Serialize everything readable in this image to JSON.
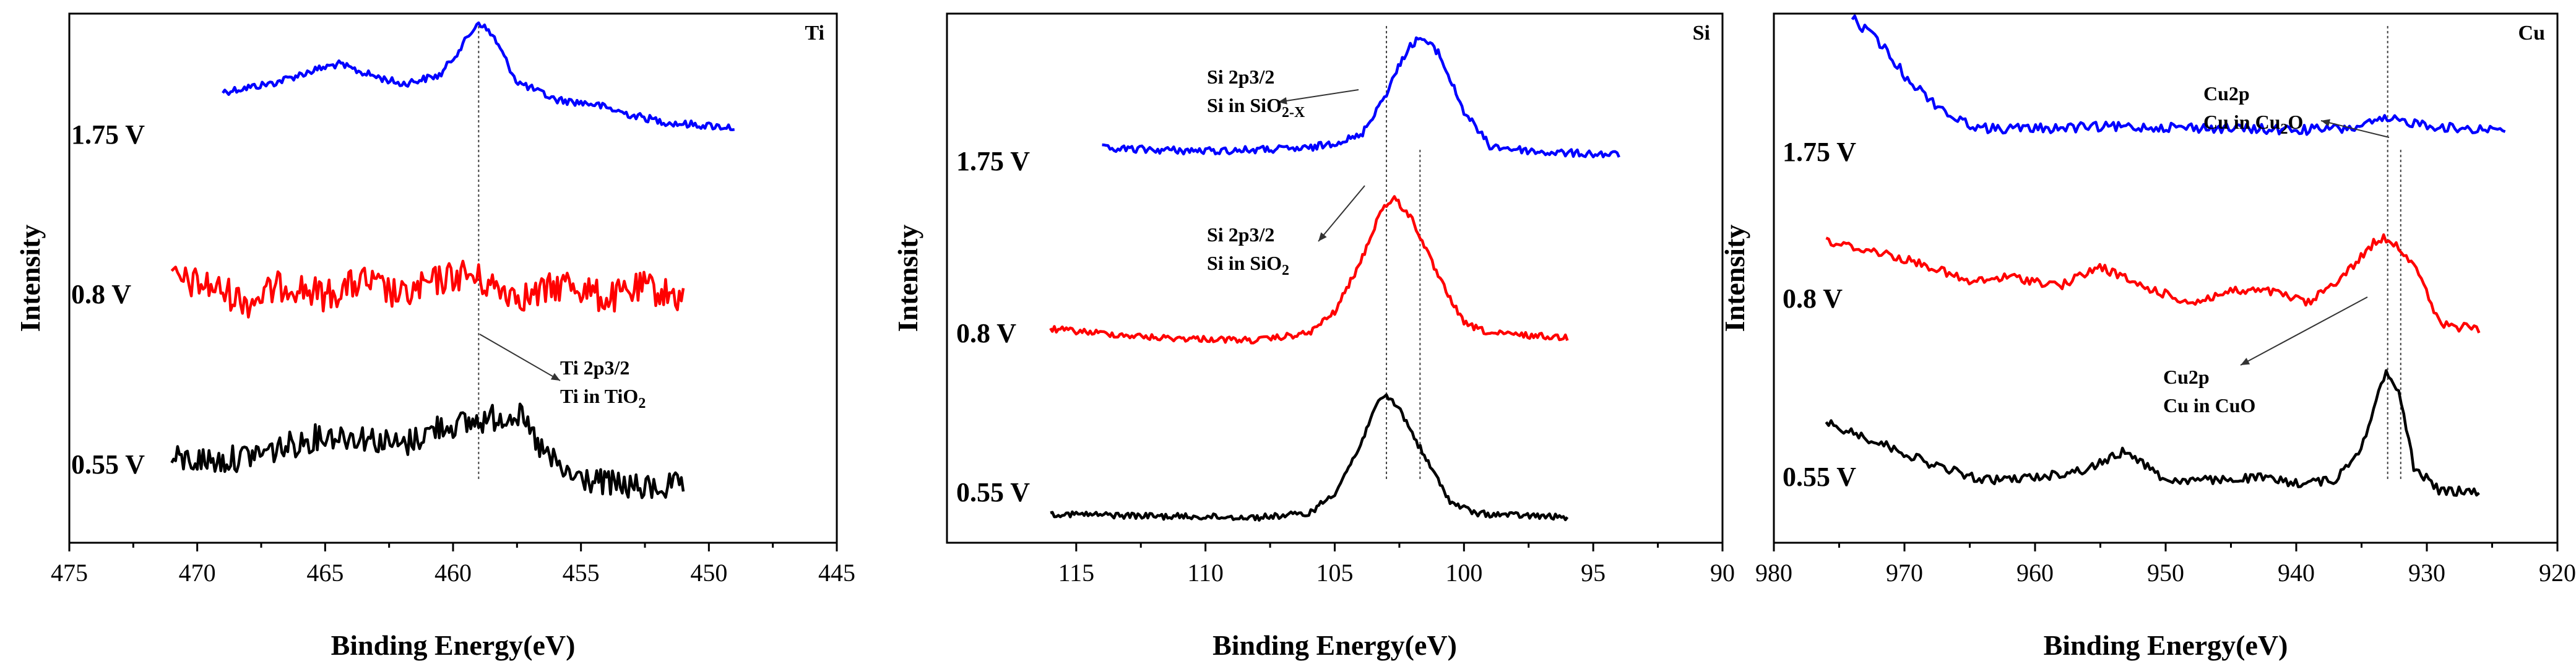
{
  "chart_data": [
    {
      "type": "line",
      "title": "Ti",
      "xlabel": "Binding Energy(eV)",
      "ylabel": "Intensity",
      "xlim": [
        475,
        445
      ],
      "xticks": [
        475,
        470,
        465,
        460,
        455,
        450,
        445
      ],
      "xtick_labels": [
        "475",
        "470",
        "465",
        "460",
        "455",
        "450",
        "445"
      ],
      "reference_line_x": 459.0,
      "annotations": [
        {
          "lines": [
            "Ti 2p3/2",
            "Ti in TiO",
            "2"
          ],
          "points_to_x": 459.0
        }
      ],
      "series": [
        {
          "name": "1.75 V",
          "label": "1.75 V",
          "color": "#0000ff",
          "x": [
            469,
            467,
            465.5,
            464.5,
            463.5,
            462,
            460.5,
            459.6,
            459.0,
            458.4,
            457.5,
            456,
            454.5,
            453,
            451.5,
            449
          ],
          "y": [
            0.37,
            0.45,
            0.56,
            0.62,
            0.54,
            0.44,
            0.52,
            0.8,
            1.0,
            0.86,
            0.46,
            0.3,
            0.26,
            0.16,
            0.09,
            0.05
          ]
        },
        {
          "name": "0.8 V",
          "label": "0.8 V",
          "color": "#ff0000",
          "x": [
            471,
            469.5,
            468,
            466.5,
            465,
            463.5,
            462,
            460.5,
            459.5,
            458.5,
            457,
            455.5,
            454,
            452.5,
            451
          ],
          "y": [
            0.18,
            0.08,
            -0.18,
            0.12,
            -0.08,
            0.16,
            -0.1,
            0.18,
            0.28,
            0.08,
            -0.1,
            0.14,
            -0.14,
            0.06,
            -0.12
          ]
        },
        {
          "name": "0.55 V",
          "label": "0.55 V",
          "color": "#000000",
          "x": [
            471,
            469,
            467,
            465,
            463.5,
            462,
            460.5,
            459.5,
            458.5,
            457.5,
            456.5,
            455.5,
            454,
            452.5,
            451
          ],
          "y": [
            0.12,
            0.1,
            0.22,
            0.38,
            0.36,
            0.26,
            0.48,
            0.5,
            0.56,
            0.62,
            0.2,
            -0.06,
            -0.14,
            -0.2,
            -0.16
          ]
        }
      ]
    },
    {
      "type": "line",
      "title": "Si",
      "xlabel": "Binding Energy(eV)",
      "ylabel": "Intensity",
      "xlim": [
        120,
        90
      ],
      "xticks": [
        115,
        110,
        105,
        100,
        95,
        90
      ],
      "xtick_labels": [
        "115",
        "110",
        "105",
        "100",
        "95",
        "90"
      ],
      "reference_lines_x": [
        103.0,
        101.7
      ],
      "annotations": [
        {
          "lines": [
            "Si 2p3/2",
            "Si in SiO",
            "2-X"
          ],
          "points_to_x": 101.7
        },
        {
          "lines": [
            "Si 2p3/2",
            "Si in SiO",
            "2"
          ],
          "points_to_x": 103.0
        }
      ],
      "series": [
        {
          "name": "1.75 V",
          "label": "1.75 V",
          "color": "#0000ff",
          "x": [
            114,
            110,
            106,
            104,
            103,
            102.2,
            101.7,
            101.0,
            100.0,
            99.0,
            97,
            94
          ],
          "y": [
            0.1,
            0.08,
            0.1,
            0.2,
            0.55,
            0.9,
            1.0,
            0.88,
            0.4,
            0.12,
            0.07,
            0.05
          ]
        },
        {
          "name": "0.8 V",
          "label": "0.8 V",
          "color": "#ff0000",
          "x": [
            116,
            112,
            108,
            106,
            105,
            104,
            103.2,
            102.7,
            102.0,
            101.0,
            100.0,
            99,
            96
          ],
          "y": [
            0.08,
            0.02,
            0.0,
            0.05,
            0.2,
            0.55,
            0.92,
            1.0,
            0.85,
            0.45,
            0.12,
            0.05,
            0.02
          ]
        },
        {
          "name": "0.55 V",
          "label": "0.55 V",
          "color": "#000000",
          "x": [
            116,
            112,
            108,
            106,
            105,
            104,
            103.5,
            103.0,
            102.5,
            101.5,
            100.5,
            99.5,
            96
          ],
          "y": [
            0.05,
            0.03,
            0.02,
            0.05,
            0.22,
            0.6,
            0.9,
            1.0,
            0.9,
            0.5,
            0.14,
            0.05,
            0.02
          ]
        }
      ]
    },
    {
      "type": "line",
      "title": "Cu",
      "xlabel": "Binding Energy(eV)",
      "ylabel": "Intensity",
      "xlim": [
        980,
        920
      ],
      "xticks": [
        980,
        970,
        960,
        950,
        940,
        930,
        920
      ],
      "xtick_labels": [
        "980",
        "970",
        "960",
        "950",
        "940",
        "930",
        "920"
      ],
      "reference_lines_x": [
        933.0,
        932.0
      ],
      "annotations": [
        {
          "lines": [
            "Cu2p",
            "Cu in Cu",
            "2",
            "O"
          ],
          "points_to_x": 932.0
        },
        {
          "lines": [
            "Cu2p",
            "Cu in CuO"
          ],
          "points_to_x": 933.0
        }
      ],
      "series": [
        {
          "name": "1.75 V",
          "label": "1.75 V",
          "color": "#0000ff",
          "x": [
            974,
            972,
            970,
            968,
            966,
            964,
            960,
            955,
            950,
            945,
            940,
            936,
            933,
            931,
            928,
            924
          ],
          "y": [
            1.0,
            0.85,
            0.62,
            0.45,
            0.32,
            0.26,
            0.26,
            0.27,
            0.27,
            0.26,
            0.25,
            0.26,
            0.32,
            0.3,
            0.26,
            0.26
          ]
        },
        {
          "name": "0.8 V",
          "label": "0.8 V",
          "color": "#ff0000",
          "x": [
            976,
            972,
            968,
            965,
            962,
            958,
            955,
            952,
            948,
            945,
            942,
            939,
            936,
            934,
            933,
            931,
            929,
            926
          ],
          "y": [
            0.72,
            0.65,
            0.55,
            0.44,
            0.48,
            0.42,
            0.55,
            0.42,
            0.3,
            0.38,
            0.38,
            0.3,
            0.52,
            0.72,
            0.75,
            0.58,
            0.15,
            0.12
          ]
        },
        {
          "name": "0.55 V",
          "label": "0.55 V",
          "color": "#000000",
          "x": [
            976,
            972,
            968,
            964,
            960,
            956,
            953,
            950,
            946,
            943,
            940,
            937,
            935,
            933.5,
            933,
            932,
            931,
            929,
            926
          ],
          "y": [
            0.62,
            0.48,
            0.32,
            0.2,
            0.22,
            0.28,
            0.42,
            0.2,
            0.2,
            0.22,
            0.18,
            0.2,
            0.45,
            0.9,
            1.0,
            0.8,
            0.3,
            0.12,
            0.12
          ]
        }
      ]
    }
  ]
}
